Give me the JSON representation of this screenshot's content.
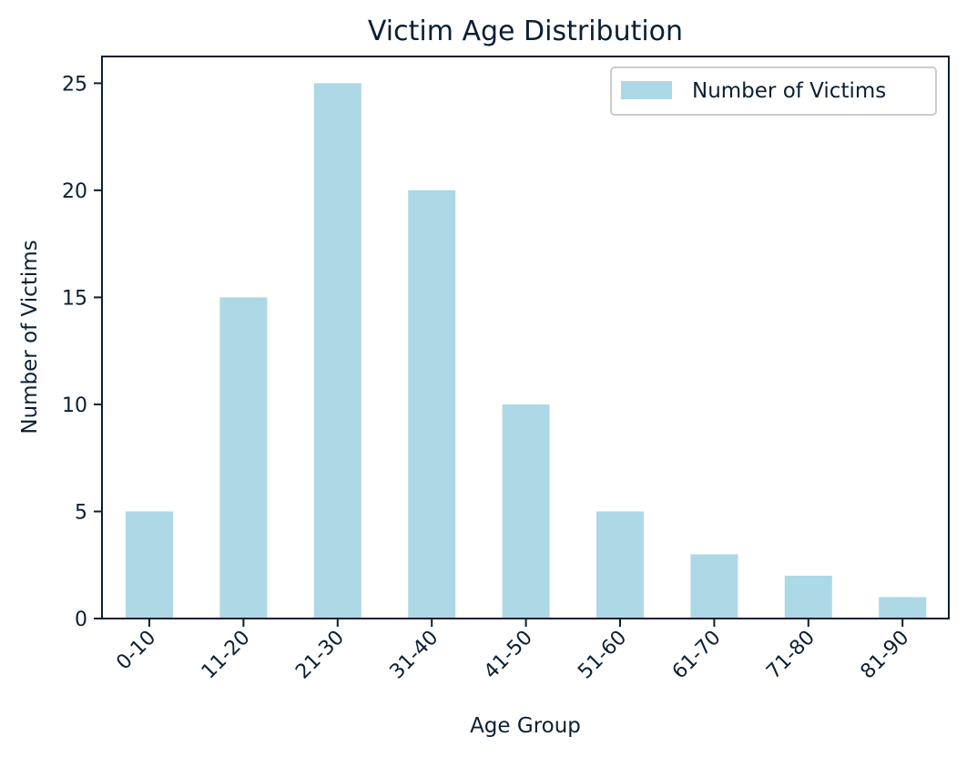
{
  "chart_data": {
    "type": "bar",
    "title": "Victim Age Distribution",
    "xlabel": "Age Group",
    "ylabel": "Number of Victims",
    "categories": [
      "0-10",
      "11-20",
      "21-30",
      "31-40",
      "41-50",
      "51-60",
      "61-70",
      "71-80",
      "81-90"
    ],
    "series": [
      {
        "name": "Number of Victims",
        "values": [
          5,
          15,
          25,
          20,
          10,
          5,
          3,
          2,
          1
        ]
      }
    ],
    "yticks": [
      "0",
      "5",
      "10",
      "15",
      "20",
      "25"
    ],
    "ylim": [
      0,
      26.25
    ],
    "grid": false,
    "legend_position": "top-right",
    "colors": {
      "bar": "#add8e6",
      "axis": "#0b1f33",
      "text": "#0b1f33"
    }
  }
}
